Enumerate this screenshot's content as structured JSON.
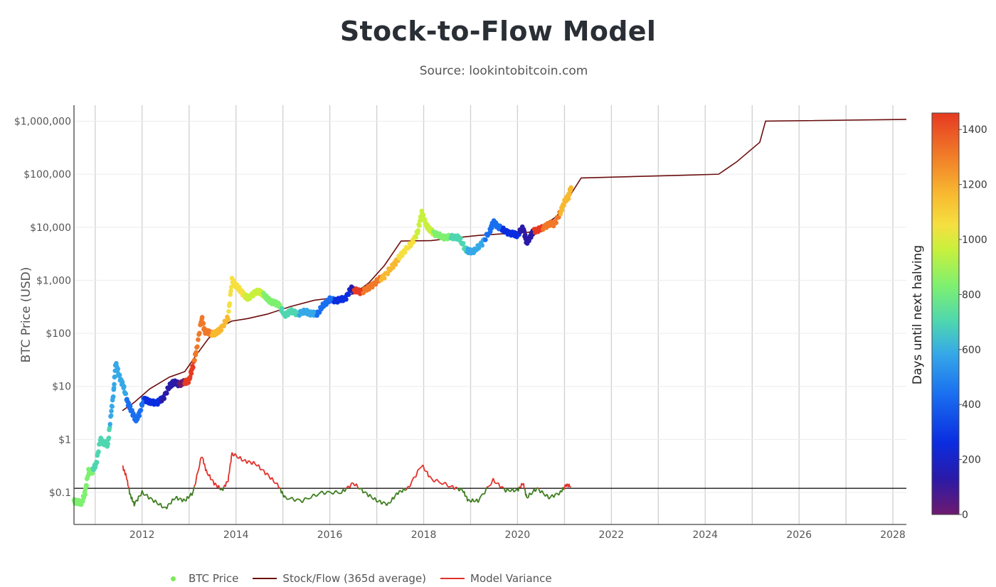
{
  "title": "Stock-to-Flow Model",
  "subtitle": "Source: lookintobitcoin.com",
  "legend": {
    "btc": "BTC Price",
    "s2f": "Stock/Flow (365d average)",
    "variance": "Model Variance"
  },
  "colors": {
    "s2f": "#6b0d0d",
    "variance_high": "#e0302a",
    "variance_low": "#3e7d1e",
    "baseline": "#000000",
    "grid": "#cfcfcf"
  },
  "chart_data": {
    "type": "scatter",
    "title": "Stock-to-Flow Model",
    "ylabel": "BTC Price (USD)",
    "yscale": "log",
    "ylim": [
      0.025,
      2000000
    ],
    "xlim": [
      "2010-07-20",
      "2028-04-15"
    ],
    "x_ticks": [
      "2012",
      "2014",
      "2016",
      "2018",
      "2020",
      "2022",
      "2024",
      "2026",
      "2028"
    ],
    "y_ticks": [
      {
        "value": 1000000,
        "label": "$1,000,000"
      },
      {
        "value": 100000,
        "label": "$100,000"
      },
      {
        "value": 10000,
        "label": "$10,000"
      },
      {
        "value": 1000,
        "label": "$1,000"
      },
      {
        "value": 100,
        "label": "$100"
      },
      {
        "value": 10,
        "label": "$10"
      },
      {
        "value": 1,
        "label": "$1"
      },
      {
        "value": 0.1,
        "label": "$0.1"
      }
    ],
    "colorbar": {
      "label": "Days until next halving",
      "range": [
        0,
        1460
      ],
      "ticks": [
        0,
        200,
        400,
        600,
        800,
        1000,
        1200,
        1400
      ],
      "colorscale": [
        "#6e1a6e",
        "#2a1aa8",
        "#0a2de0",
        "#1a6ff0",
        "#36a8e8",
        "#4ed6b0",
        "#7ef070",
        "#c8f03c",
        "#f5e040",
        "#f8b830",
        "#f07828",
        "#e63a22"
      ]
    },
    "series": [
      {
        "name": "BTC Price",
        "kind": "markers",
        "color_by": "days until next halving",
        "points": [
          [
            "2010-07-20",
            0.07,
            860
          ],
          [
            "2010-08-20",
            0.065,
            830
          ],
          [
            "2010-09-20",
            0.065,
            800
          ],
          [
            "2010-10-15",
            0.1,
            780
          ],
          [
            "2010-11-10",
            0.25,
            760
          ],
          [
            "2010-12-10",
            0.25,
            730
          ],
          [
            "2011-01-10",
            0.35,
            700
          ],
          [
            "2011-02-10",
            1.0,
            670
          ],
          [
            "2011-03-10",
            0.85,
            640
          ],
          [
            "2011-04-10",
            0.8,
            610
          ],
          [
            "2011-05-05",
            3.0,
            590
          ],
          [
            "2011-05-25",
            8.0,
            570
          ],
          [
            "2011-06-10",
            28,
            555
          ],
          [
            "2011-07-10",
            15,
            520
          ],
          [
            "2011-08-10",
            10,
            490
          ],
          [
            "2011-09-10",
            5,
            460
          ],
          [
            "2011-10-10",
            3.5,
            430
          ],
          [
            "2011-11-15",
            2.3,
            395
          ],
          [
            "2011-12-15",
            3.2,
            365
          ],
          [
            "2012-01-15",
            6,
            335
          ],
          [
            "2012-03-01",
            5,
            290
          ],
          [
            "2012-05-01",
            5,
            230
          ],
          [
            "2012-06-15",
            6,
            185
          ],
          [
            "2012-08-01",
            10,
            140
          ],
          [
            "2012-09-01",
            12,
            110
          ],
          [
            "2012-10-15",
            11,
            65
          ],
          [
            "2012-11-28",
            12,
            1460
          ],
          [
            "2013-01-01",
            13,
            1430
          ],
          [
            "2013-02-01",
            25,
            1400
          ],
          [
            "2013-03-01",
            50,
            1370
          ],
          [
            "2013-04-10",
            200,
            1330
          ],
          [
            "2013-05-01",
            110,
            1310
          ],
          [
            "2013-06-15",
            100,
            1270
          ],
          [
            "2013-08-01",
            100,
            1220
          ],
          [
            "2013-09-15",
            130,
            1180
          ],
          [
            "2013-11-01",
            200,
            1130
          ],
          [
            "2013-12-01",
            1000,
            1100
          ],
          [
            "2014-01-01",
            800,
            1070
          ],
          [
            "2014-02-15",
            600,
            1020
          ],
          [
            "2014-04-01",
            450,
            980
          ],
          [
            "2014-06-01",
            600,
            920
          ],
          [
            "2014-07-15",
            600,
            880
          ],
          [
            "2014-09-01",
            450,
            830
          ],
          [
            "2014-10-15",
            380,
            790
          ],
          [
            "2014-12-01",
            350,
            745
          ],
          [
            "2015-01-15",
            220,
            700
          ],
          [
            "2015-03-01",
            260,
            660
          ],
          [
            "2015-05-01",
            235,
            600
          ],
          [
            "2015-07-01",
            260,
            540
          ],
          [
            "2015-08-15",
            230,
            500
          ],
          [
            "2015-10-01",
            240,
            455
          ],
          [
            "2015-11-15",
            350,
            410
          ],
          [
            "2016-01-01",
            430,
            365
          ],
          [
            "2016-03-01",
            420,
            305
          ],
          [
            "2016-05-01",
            450,
            245
          ],
          [
            "2016-06-15",
            700,
            195
          ],
          [
            "2016-07-09",
            650,
            1460
          ],
          [
            "2016-09-01",
            600,
            1410
          ],
          [
            "2016-11-01",
            720,
            1350
          ],
          [
            "2017-01-01",
            950,
            1290
          ],
          [
            "2017-03-01",
            1200,
            1230
          ],
          [
            "2017-05-01",
            1800,
            1170
          ],
          [
            "2017-06-15",
            2500,
            1130
          ],
          [
            "2017-08-01",
            3500,
            1080
          ],
          [
            "2017-10-01",
            5000,
            1020
          ],
          [
            "2017-11-15",
            8000,
            980
          ],
          [
            "2017-12-17",
            19000,
            950
          ],
          [
            "2018-01-15",
            12000,
            920
          ],
          [
            "2018-02-15",
            9000,
            890
          ],
          [
            "2018-04-01",
            7500,
            845
          ],
          [
            "2018-06-01",
            6500,
            785
          ],
          [
            "2018-08-01",
            6500,
            725
          ],
          [
            "2018-10-01",
            6500,
            665
          ],
          [
            "2018-11-20",
            4000,
            615
          ],
          [
            "2018-12-15",
            3500,
            590
          ],
          [
            "2019-02-01",
            3600,
            545
          ],
          [
            "2019-04-01",
            5000,
            485
          ],
          [
            "2019-06-01",
            8500,
            425
          ],
          [
            "2019-06-26",
            12500,
            400
          ],
          [
            "2019-08-01",
            10500,
            365
          ],
          [
            "2019-10-01",
            8300,
            305
          ],
          [
            "2019-12-01",
            7400,
            245
          ],
          [
            "2020-01-01",
            7200,
            215
          ],
          [
            "2020-02-15",
            9800,
            170
          ],
          [
            "2020-03-13",
            5000,
            145
          ],
          [
            "2020-04-15",
            7000,
            110
          ],
          [
            "2020-05-11",
            8600,
            1460
          ],
          [
            "2020-07-01",
            9200,
            1410
          ],
          [
            "2020-09-01",
            11500,
            1350
          ],
          [
            "2020-10-15",
            11500,
            1300
          ],
          [
            "2020-12-01",
            19000,
            1260
          ],
          [
            "2021-01-01",
            30000,
            1230
          ],
          [
            "2021-02-01",
            38000,
            1200
          ],
          [
            "2021-02-21",
            56000,
            1180
          ]
        ]
      },
      {
        "name": "Stock/Flow (365d average)",
        "kind": "line",
        "points": [
          [
            "2011-08-01",
            3.5
          ],
          [
            "2011-11-01",
            5
          ],
          [
            "2012-03-01",
            9
          ],
          [
            "2012-08-01",
            15
          ],
          [
            "2012-11-28",
            19
          ],
          [
            "2013-03-01",
            40
          ],
          [
            "2013-06-01",
            80
          ],
          [
            "2013-09-01",
            130
          ],
          [
            "2013-11-28",
            170
          ],
          [
            "2014-04-01",
            190
          ],
          [
            "2014-09-01",
            230
          ],
          [
            "2015-03-01",
            320
          ],
          [
            "2015-09-01",
            420
          ],
          [
            "2016-03-01",
            480
          ],
          [
            "2016-07-09",
            560
          ],
          [
            "2016-11-01",
            900
          ],
          [
            "2017-03-01",
            1900
          ],
          [
            "2017-07-09",
            5500
          ],
          [
            "2018-03-01",
            5600
          ],
          [
            "2018-08-01",
            6200
          ],
          [
            "2019-03-01",
            7000
          ],
          [
            "2019-09-01",
            7500
          ],
          [
            "2020-01-01",
            7800
          ],
          [
            "2020-05-11",
            8200
          ],
          [
            "2020-11-01",
            16000
          ],
          [
            "2021-05-11",
            85000
          ],
          [
            "2022-06-01",
            90000
          ],
          [
            "2023-06-01",
            95000
          ],
          [
            "2024-04-15",
            100000
          ],
          [
            "2024-09-01",
            170000
          ],
          [
            "2025-03-01",
            400000
          ],
          [
            "2025-04-15",
            1000000
          ],
          [
            "2028-04-15",
            1080000
          ]
        ]
      },
      {
        "name": "Model Variance",
        "kind": "line",
        "points": [
          [
            "2011-08-01",
            0.32
          ],
          [
            "2011-09-01",
            0.2
          ],
          [
            "2011-10-01",
            0.09
          ],
          [
            "2011-11-01",
            0.06
          ],
          [
            "2012-01-01",
            0.1
          ],
          [
            "2012-04-01",
            0.07
          ],
          [
            "2012-07-01",
            0.05
          ],
          [
            "2012-09-15",
            0.08
          ],
          [
            "2012-12-01",
            0.07
          ],
          [
            "2013-02-01",
            0.1
          ],
          [
            "2013-04-10",
            0.5
          ],
          [
            "2013-05-15",
            0.25
          ],
          [
            "2013-07-15",
            0.15
          ],
          [
            "2013-09-15",
            0.11
          ],
          [
            "2013-11-01",
            0.17
          ],
          [
            "2013-12-01",
            0.55
          ],
          [
            "2014-03-01",
            0.4
          ],
          [
            "2014-06-01",
            0.35
          ],
          [
            "2014-09-01",
            0.22
          ],
          [
            "2014-12-01",
            0.13
          ],
          [
            "2015-01-15",
            0.08
          ],
          [
            "2015-06-01",
            0.07
          ],
          [
            "2015-11-01",
            0.1
          ],
          [
            "2016-04-01",
            0.1
          ],
          [
            "2016-07-01",
            0.15
          ],
          [
            "2016-10-01",
            0.1
          ],
          [
            "2017-01-01",
            0.07
          ],
          [
            "2017-04-01",
            0.06
          ],
          [
            "2017-06-15",
            0.1
          ],
          [
            "2017-09-01",
            0.12
          ],
          [
            "2017-12-17",
            0.33
          ],
          [
            "2018-03-01",
            0.18
          ],
          [
            "2018-08-01",
            0.13
          ],
          [
            "2018-11-01",
            0.11
          ],
          [
            "2018-12-15",
            0.07
          ],
          [
            "2019-03-01",
            0.07
          ],
          [
            "2019-06-26",
            0.17
          ],
          [
            "2019-10-01",
            0.11
          ],
          [
            "2020-01-01",
            0.11
          ],
          [
            "2020-02-15",
            0.15
          ],
          [
            "2020-03-13",
            0.08
          ],
          [
            "2020-06-01",
            0.12
          ],
          [
            "2020-09-01",
            0.08
          ],
          [
            "2020-12-01",
            0.1
          ],
          [
            "2021-01-15",
            0.14
          ],
          [
            "2021-02-21",
            0.13
          ]
        ]
      }
    ],
    "variance_baseline": 0.12,
    "legend_position": "bottom"
  }
}
